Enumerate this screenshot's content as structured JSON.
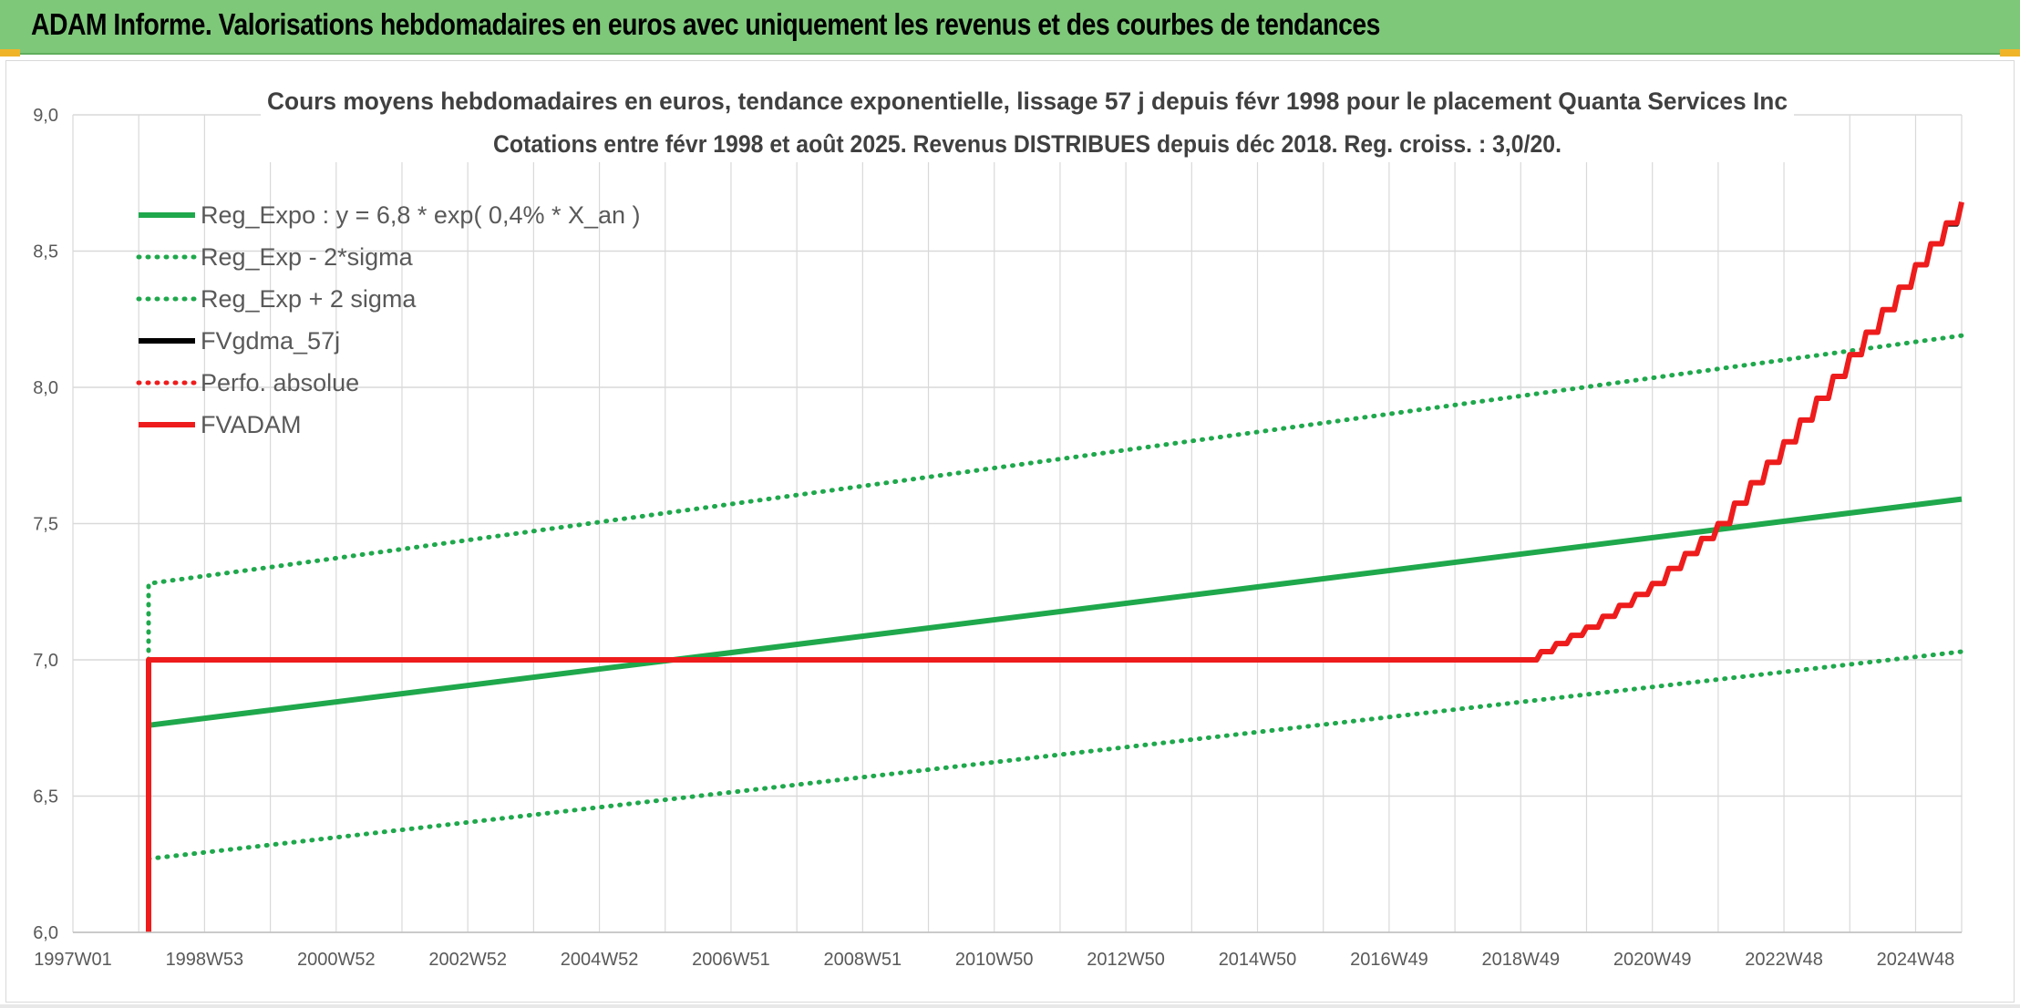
{
  "header": {
    "title": "ADAM Informe. Valorisations hebdomadaires en euros avec uniquement les revenus et des courbes de tendances"
  },
  "colors": {
    "banner": "#7ec87a",
    "green": "#1fa84c",
    "red": "#ee1c1c",
    "black": "#000000",
    "grid": "#d9d9d9",
    "axis_text": "#595959",
    "title_text": "#404040"
  },
  "chart_data": {
    "type": "line",
    "title": "Cours moyens hebdomadaires en euros, tendance exponentielle, lissage 57 j depuis févr 1998 pour le placement Quanta Services Inc",
    "subtitle": "Cotations entre févr 1998 et août 2025. Revenus DISTRIBUES depuis déc 2018. Reg. croiss. : 3,0/20.",
    "xlabel": "",
    "ylabel": "",
    "ylim": [
      6.0,
      9.0
    ],
    "yticks": [
      "6,0",
      "6,5",
      "7,0",
      "7,5",
      "8,0",
      "8,5",
      "9,0"
    ],
    "xlim": [
      1997.0,
      2025.7
    ],
    "xticks": [
      {
        "label": "1997W01",
        "x": 1997.0
      },
      {
        "label": "1998W53",
        "x": 1999.0
      },
      {
        "label": "2000W52",
        "x": 2001.0
      },
      {
        "label": "2002W52",
        "x": 2003.0
      },
      {
        "label": "2004W52",
        "x": 2005.0
      },
      {
        "label": "2006W51",
        "x": 2007.0
      },
      {
        "label": "2008W51",
        "x": 2009.0
      },
      {
        "label": "2010W50",
        "x": 2011.0
      },
      {
        "label": "2012W50",
        "x": 2013.0
      },
      {
        "label": "2014W50",
        "x": 2015.0
      },
      {
        "label": "2016W49",
        "x": 2017.0
      },
      {
        "label": "2018W49",
        "x": 2019.0
      },
      {
        "label": "2020W49",
        "x": 2021.0
      },
      {
        "label": "2022W48",
        "x": 2023.0
      },
      {
        "label": "2024W48",
        "x": 2025.0
      }
    ],
    "grid": true,
    "legend_position": "top-left",
    "series": [
      {
        "name": "Reg_Expo : y = 6,8 * exp( 0,4% *  X_an )",
        "color": "#1fa84c",
        "style": "solid",
        "points": [
          [
            1998.15,
            6.76
          ],
          [
            2025.7,
            7.59
          ]
        ]
      },
      {
        "name": "Reg_Exp - 2*sigma",
        "color": "#1fa84c",
        "style": "dotted",
        "points": [
          [
            1998.15,
            6.27
          ],
          [
            2025.7,
            7.03
          ]
        ]
      },
      {
        "name": "Reg_Exp + 2 sigma",
        "color": "#1fa84c",
        "style": "dotted",
        "points": [
          [
            1998.15,
            7.0
          ],
          [
            1998.15,
            7.28
          ],
          [
            2000.0,
            7.34
          ],
          [
            2025.7,
            8.19
          ]
        ]
      },
      {
        "name": "FVgdma_57j",
        "color": "#000000",
        "style": "solid",
        "points": [
          [
            1998.15,
            7.0
          ],
          [
            2019.08,
            7.0
          ],
          [
            2020.0,
            7.12
          ],
          [
            2021.0,
            7.28
          ],
          [
            2022.0,
            7.5
          ],
          [
            2023.0,
            7.8
          ],
          [
            2024.0,
            8.12
          ],
          [
            2025.0,
            8.45
          ],
          [
            2025.7,
            8.67
          ]
        ]
      },
      {
        "name": "Perfo. absolue",
        "color": "#ee1c1c",
        "style": "dotted",
        "points": [
          [
            1998.15,
            7.0
          ],
          [
            2019.08,
            7.0
          ]
        ]
      },
      {
        "name": "FVADAM",
        "color": "#ee1c1c",
        "style": "solid",
        "points": [
          [
            1998.15,
            6.0
          ],
          [
            1998.15,
            7.0
          ],
          [
            2019.08,
            7.0
          ],
          [
            2020.0,
            7.12
          ],
          [
            2021.0,
            7.28
          ],
          [
            2022.0,
            7.5
          ],
          [
            2023.0,
            7.8
          ],
          [
            2024.0,
            8.12
          ],
          [
            2025.0,
            8.45
          ],
          [
            2025.7,
            8.68
          ]
        ]
      }
    ]
  }
}
